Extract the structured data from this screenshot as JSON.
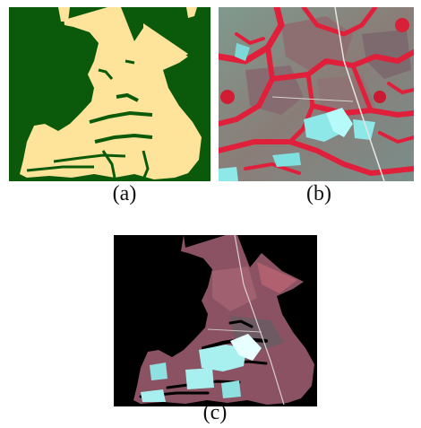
{
  "figure": {
    "panels": [
      {
        "id": "a",
        "caption": "(a)",
        "colors": {
          "background": "#0b5a0b",
          "foreground": "#fde49a"
        }
      },
      {
        "id": "b",
        "caption": "(b)",
        "colors": {
          "land": "#8a7d78",
          "vegetation": "#e0203a",
          "bare": "#8fe8e8"
        }
      },
      {
        "id": "c",
        "caption": "(c)",
        "colors": {
          "background": "#000000",
          "land": "#9a5060",
          "bare": "#a8f0f0"
        }
      }
    ]
  }
}
